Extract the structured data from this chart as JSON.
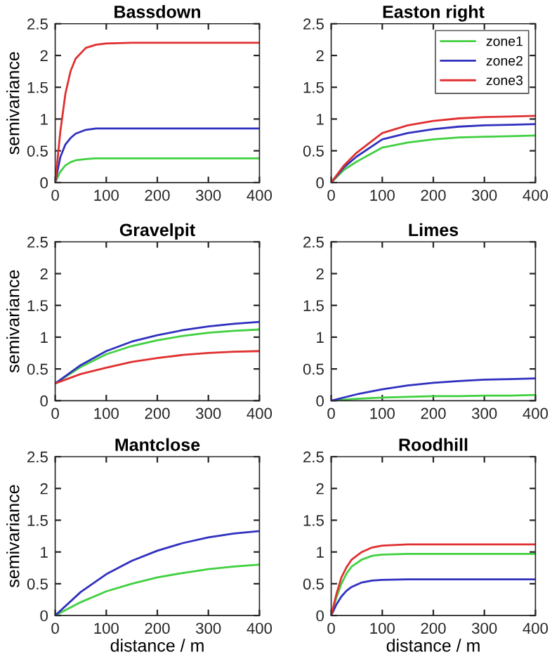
{
  "chart_data": [
    {
      "type": "line",
      "title": "Bassdown",
      "ylabel": "semivariance",
      "xlim": [
        0,
        400
      ],
      "ylim": [
        0,
        2.5
      ],
      "xticks": [
        0,
        100,
        200,
        300,
        400
      ],
      "yticks": [
        0,
        0.5,
        1,
        1.5,
        2,
        2.5
      ],
      "grid": false,
      "legend": false,
      "x": [
        0,
        10,
        20,
        30,
        40,
        60,
        80,
        100,
        150,
        200,
        250,
        300,
        350,
        400
      ],
      "series": [
        {
          "color": "#40d040",
          "values": [
            0,
            0.17,
            0.27,
            0.32,
            0.35,
            0.37,
            0.38,
            0.38,
            0.38,
            0.38,
            0.38,
            0.38,
            0.38,
            0.38
          ]
        },
        {
          "color": "#3030c0",
          "values": [
            0,
            0.4,
            0.6,
            0.7,
            0.77,
            0.83,
            0.85,
            0.85,
            0.85,
            0.85,
            0.85,
            0.85,
            0.85,
            0.85
          ]
        },
        {
          "color": "#e03030",
          "values": [
            0,
            0.8,
            1.4,
            1.75,
            1.95,
            2.12,
            2.17,
            2.19,
            2.2,
            2.2,
            2.2,
            2.2,
            2.2,
            2.2
          ]
        }
      ]
    },
    {
      "type": "line",
      "title": "Easton right",
      "xlim": [
        0,
        400
      ],
      "ylim": [
        0,
        2.5
      ],
      "xticks": [
        0,
        100,
        200,
        300,
        400
      ],
      "yticks": [
        0,
        0.5,
        1,
        1.5,
        2,
        2.5
      ],
      "grid": false,
      "legend": "top right",
      "x": [
        0,
        25,
        50,
        100,
        150,
        200,
        250,
        300,
        350,
        400
      ],
      "series": [
        {
          "name": "zone1",
          "color": "#40d040",
          "values": [
            0,
            0.2,
            0.33,
            0.55,
            0.63,
            0.68,
            0.71,
            0.72,
            0.73,
            0.74
          ]
        },
        {
          "name": "zone2",
          "color": "#3030c0",
          "values": [
            0,
            0.24,
            0.41,
            0.68,
            0.78,
            0.84,
            0.88,
            0.9,
            0.91,
            0.92
          ]
        },
        {
          "name": "zone3",
          "color": "#e03030",
          "values": [
            0,
            0.27,
            0.47,
            0.78,
            0.9,
            0.97,
            1.01,
            1.03,
            1.04,
            1.05
          ]
        }
      ]
    },
    {
      "type": "line",
      "title": "Gravelpit",
      "ylabel": "semivariance",
      "xlim": [
        0,
        400
      ],
      "ylim": [
        0,
        2.5
      ],
      "xticks": [
        0,
        100,
        200,
        300,
        400
      ],
      "yticks": [
        0,
        0.5,
        1,
        1.5,
        2,
        2.5
      ],
      "grid": false,
      "legend": false,
      "x": [
        0,
        50,
        100,
        150,
        200,
        250,
        300,
        350,
        400
      ],
      "series": [
        {
          "color": "#40d040",
          "values": [
            0.27,
            0.53,
            0.73,
            0.86,
            0.95,
            1.02,
            1.07,
            1.1,
            1.12
          ]
        },
        {
          "color": "#3030c0",
          "values": [
            0.27,
            0.56,
            0.78,
            0.93,
            1.03,
            1.11,
            1.17,
            1.21,
            1.24
          ]
        },
        {
          "color": "#e03030",
          "values": [
            0.27,
            0.42,
            0.52,
            0.61,
            0.67,
            0.72,
            0.75,
            0.77,
            0.78
          ]
        }
      ]
    },
    {
      "type": "line",
      "title": "Limes",
      "xlim": [
        0,
        400
      ],
      "ylim": [
        0,
        2.5
      ],
      "xticks": [
        0,
        100,
        200,
        300,
        400
      ],
      "yticks": [
        0,
        0.5,
        1,
        1.5,
        2,
        2.5
      ],
      "grid": false,
      "legend": false,
      "x": [
        0,
        50,
        100,
        150,
        200,
        250,
        300,
        350,
        400
      ],
      "series": [
        {
          "color": "#40d040",
          "values": [
            0,
            0.03,
            0.05,
            0.06,
            0.07,
            0.07,
            0.08,
            0.08,
            0.09
          ]
        },
        {
          "color": "#3030c0",
          "values": [
            0,
            0.1,
            0.18,
            0.24,
            0.28,
            0.31,
            0.33,
            0.34,
            0.35
          ]
        }
      ]
    },
    {
      "type": "line",
      "title": "Mantclose",
      "xlabel": "distance / m",
      "ylabel": "semivariance",
      "xlim": [
        0,
        400
      ],
      "ylim": [
        0,
        2.5
      ],
      "xticks": [
        0,
        100,
        200,
        300,
        400
      ],
      "yticks": [
        0,
        0.5,
        1,
        1.5,
        2,
        2.5
      ],
      "grid": false,
      "legend": false,
      "x": [
        0,
        50,
        100,
        150,
        200,
        250,
        300,
        350,
        400
      ],
      "series": [
        {
          "color": "#40d040",
          "values": [
            0,
            0.21,
            0.38,
            0.5,
            0.6,
            0.67,
            0.73,
            0.77,
            0.8
          ]
        },
        {
          "color": "#3030c0",
          "values": [
            0,
            0.37,
            0.65,
            0.86,
            1.02,
            1.14,
            1.23,
            1.29,
            1.33
          ]
        }
      ]
    },
    {
      "type": "line",
      "title": "Roodhill",
      "xlabel": "distance / m",
      "xlim": [
        0,
        400
      ],
      "ylim": [
        0,
        2.5
      ],
      "xticks": [
        0,
        100,
        200,
        300,
        400
      ],
      "yticks": [
        0,
        0.5,
        1,
        1.5,
        2,
        2.5
      ],
      "grid": false,
      "legend": false,
      "x": [
        0,
        10,
        20,
        30,
        40,
        60,
        80,
        100,
        150,
        200,
        250,
        300,
        350,
        400
      ],
      "series": [
        {
          "color": "#40d040",
          "values": [
            0,
            0.28,
            0.5,
            0.66,
            0.77,
            0.88,
            0.94,
            0.96,
            0.97,
            0.97,
            0.97,
            0.97,
            0.97,
            0.97
          ]
        },
        {
          "color": "#3030c0",
          "values": [
            0,
            0.17,
            0.3,
            0.39,
            0.45,
            0.52,
            0.55,
            0.56,
            0.57,
            0.57,
            0.57,
            0.57,
            0.57,
            0.57
          ]
        },
        {
          "color": "#e03030",
          "values": [
            0,
            0.33,
            0.6,
            0.76,
            0.88,
            1.0,
            1.07,
            1.1,
            1.12,
            1.12,
            1.12,
            1.12,
            1.12,
            1.12
          ]
        }
      ]
    }
  ]
}
